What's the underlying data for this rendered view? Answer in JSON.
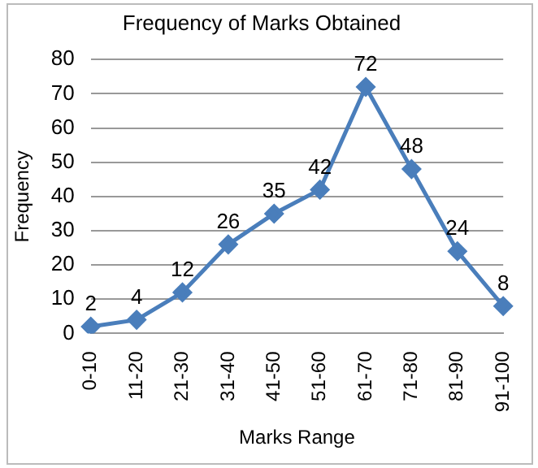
{
  "chart_data": {
    "type": "line",
    "title": "Frequency of Marks Obtained",
    "xlabel": "Marks Range",
    "ylabel": "Frequency",
    "categories": [
      "0-10",
      "11-20",
      "21-30",
      "31-40",
      "41-50",
      "51-60",
      "61-70",
      "71-80",
      "81-90",
      "91-100"
    ],
    "series": [
      {
        "color": "#4a7ebb",
        "values": [
          2,
          4,
          12,
          26,
          35,
          42,
          72,
          48,
          24,
          8
        ]
      }
    ],
    "ylim": [
      0,
      80
    ],
    "yticks": [
      0,
      10,
      20,
      30,
      40,
      50,
      60,
      70,
      80
    ],
    "grid": "y",
    "legend": false,
    "marker": "diamond",
    "line_style": "solid",
    "data_labels": true
  }
}
